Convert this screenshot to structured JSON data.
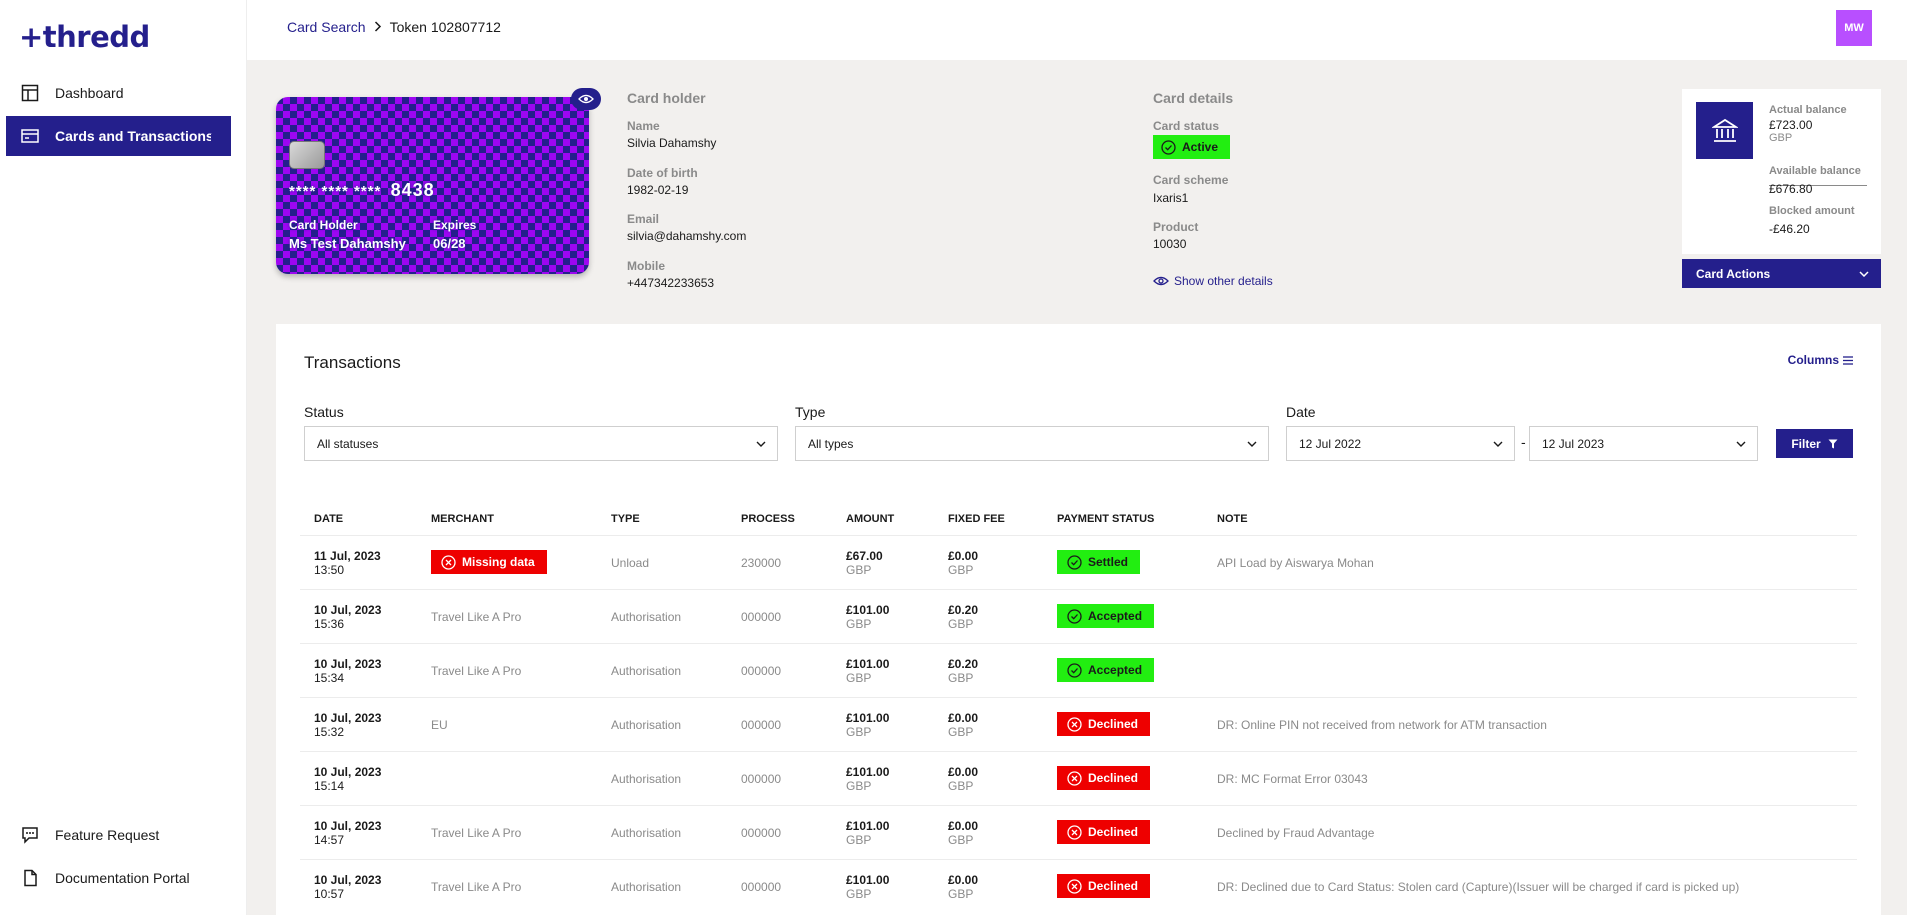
{
  "app": {
    "logo_text": "+thredd"
  },
  "sidebar": {
    "items": [
      {
        "label": "Dashboard",
        "icon": "dashboard-icon"
      },
      {
        "label": "Cards and Transactions",
        "icon": "card-icon"
      }
    ],
    "bottom_items": [
      {
        "label": "Feature Request",
        "icon": "feedback-icon"
      },
      {
        "label": "Documentation Portal",
        "icon": "document-icon"
      }
    ]
  },
  "header": {
    "breadcrumb": {
      "parent": "Card Search",
      "current": "Token 102807712"
    },
    "avatar_initials": "MW"
  },
  "card": {
    "masked": "****  ****  ****",
    "last4": "8438",
    "holder_label": "Card Holder",
    "holder_value": "Ms Test Dahamshy",
    "expires_label": "Expires",
    "expires_value": "06/28"
  },
  "card_holder": {
    "title": "Card holder",
    "name_label": "Name",
    "name": "Silvia Dahamshy",
    "dob_label": "Date of birth",
    "dob": "1982-02-19",
    "email_label": "Email",
    "email": "silvia@dahamshy.com",
    "mobile_label": "Mobile",
    "mobile": "+447342233653"
  },
  "card_details": {
    "title": "Card details",
    "status_label": "Card status",
    "status": "Active",
    "scheme_label": "Card scheme",
    "scheme": "Ixaris1",
    "product_label": "Product",
    "product": "10030",
    "show_other": "Show other details"
  },
  "balance": {
    "actual_label": "Actual balance",
    "actual": "£723.00",
    "currency": "GBP",
    "available_label": "Available balance",
    "available": "£676.80",
    "blocked_label": "Blocked amount",
    "blocked": "-£46.20",
    "actions_label": "Card Actions"
  },
  "transactions": {
    "title": "Transactions",
    "columns_label": "Columns",
    "filters": {
      "status_label": "Status",
      "status_value": "All statuses",
      "type_label": "Type",
      "type_value": "All types",
      "date_label": "Date",
      "date_from": "12 Jul 2022",
      "date_to": "12 Jul 2023",
      "dash": "-",
      "filter_button": "Filter"
    },
    "headers": [
      "DATE",
      "MERCHANT",
      "TYPE",
      "PROCESS",
      "AMOUNT",
      "FIXED FEE",
      "PAYMENT STATUS",
      "NOTE"
    ],
    "rows": [
      {
        "date": "11 Jul, 2023",
        "time": "13:50",
        "merchant": "Missing data",
        "merchant_missing": true,
        "type": "Unload",
        "process": "230000",
        "amount": "£67.00",
        "amount_cur": "GBP",
        "fee": "£0.00",
        "fee_cur": "GBP",
        "status": "Settled",
        "status_kind": "green",
        "note": "API Load by Aiswarya Mohan"
      },
      {
        "date": "10 Jul, 2023",
        "time": "15:36",
        "merchant": "Travel Like A Pro",
        "merchant_missing": false,
        "type": "Authorisation",
        "process": "000000",
        "amount": "£101.00",
        "amount_cur": "GBP",
        "fee": "£0.20",
        "fee_cur": "GBP",
        "status": "Accepted",
        "status_kind": "green",
        "note": ""
      },
      {
        "date": "10 Jul, 2023",
        "time": "15:34",
        "merchant": "Travel Like A Pro",
        "merchant_missing": false,
        "type": "Authorisation",
        "process": "000000",
        "amount": "£101.00",
        "amount_cur": "GBP",
        "fee": "£0.20",
        "fee_cur": "GBP",
        "status": "Accepted",
        "status_kind": "green",
        "note": ""
      },
      {
        "date": "10 Jul, 2023",
        "time": "15:32",
        "merchant": "EU",
        "merchant_missing": false,
        "type": "Authorisation",
        "process": "000000",
        "amount": "£101.00",
        "amount_cur": "GBP",
        "fee": "£0.00",
        "fee_cur": "GBP",
        "status": "Declined",
        "status_kind": "red",
        "note": "DR: Online PIN not received from network for ATM transaction"
      },
      {
        "date": "10 Jul, 2023",
        "time": "15:14",
        "merchant": "",
        "merchant_missing": false,
        "type": "Authorisation",
        "process": "000000",
        "amount": "£101.00",
        "amount_cur": "GBP",
        "fee": "£0.00",
        "fee_cur": "GBP",
        "status": "Declined",
        "status_kind": "red",
        "note": "DR: MC Format Error 03043"
      },
      {
        "date": "10 Jul, 2023",
        "time": "14:57",
        "merchant": "Travel Like A Pro",
        "merchant_missing": false,
        "type": "Authorisation",
        "process": "000000",
        "amount": "£101.00",
        "amount_cur": "GBP",
        "fee": "£0.00",
        "fee_cur": "GBP",
        "status": "Declined",
        "status_kind": "red",
        "note": "Declined by Fraud Advantage"
      },
      {
        "date": "10 Jul, 2023",
        "time": "10:57",
        "merchant": "Travel Like A Pro",
        "merchant_missing": false,
        "type": "Authorisation",
        "process": "000000",
        "amount": "£101.00",
        "amount_cur": "GBP",
        "fee": "£0.00",
        "fee_cur": "GBP",
        "status": "Declined",
        "status_kind": "red",
        "note": "DR: Declined due to Card Status: Stolen card (Capture)(Issuer will be charged if card is picked up)"
      }
    ]
  },
  "colors": {
    "brand": "#241f8c",
    "accent_purple": "#9d06f2",
    "avatar": "#b84fff",
    "status_green": "#22ee11",
    "status_red": "#ee0000",
    "page_bg": "#f2f0ee"
  }
}
